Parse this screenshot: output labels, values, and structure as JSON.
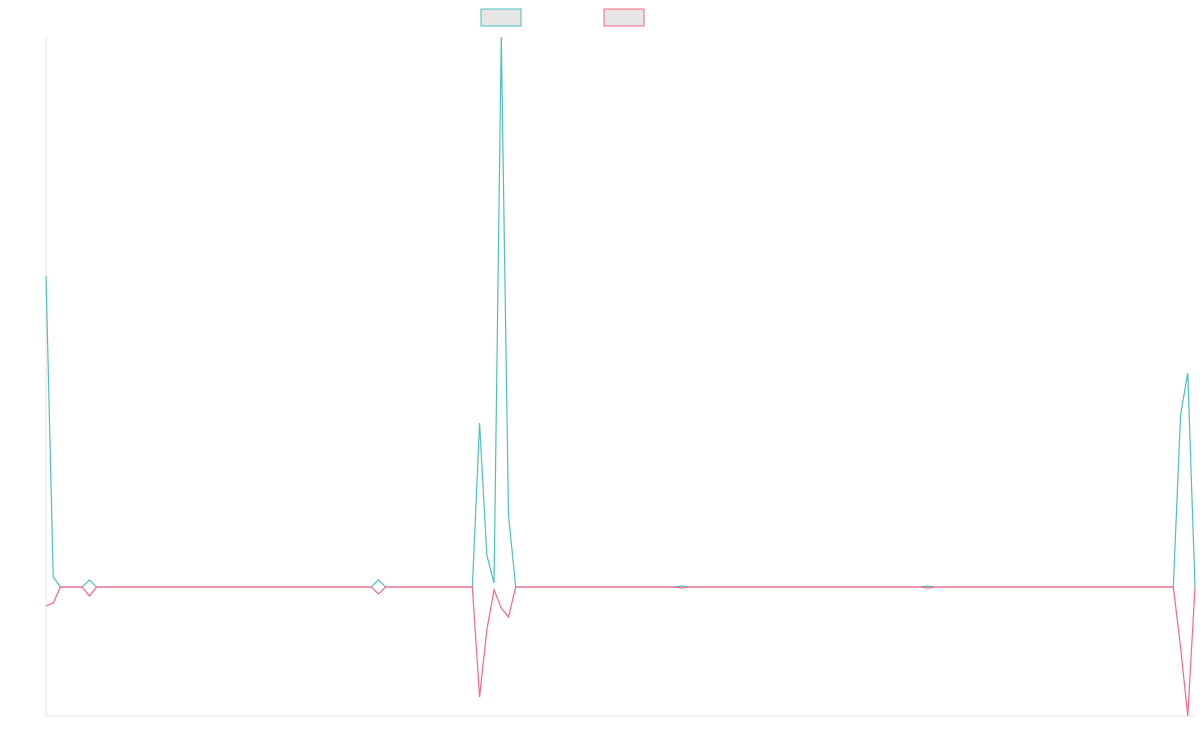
{
  "chart_data": {
    "type": "line",
    "categories": [
      null,
      null,
      null,
      null,
      null,
      null,
      null,
      null,
      null,
      null,
      null,
      null,
      null,
      null,
      null,
      null,
      null,
      null,
      null,
      null,
      null,
      null,
      null,
      null,
      null,
      null,
      null,
      null,
      null,
      null,
      null,
      null,
      null,
      null,
      null,
      null,
      null,
      null,
      null,
      null,
      null,
      null,
      null,
      null,
      null,
      null,
      null,
      null,
      null,
      null,
      null,
      null,
      null,
      null,
      null,
      null,
      null,
      null,
      null,
      null,
      null,
      null,
      null,
      null,
      null,
      null,
      null,
      null,
      null,
      null,
      null,
      null,
      null,
      null,
      null,
      null,
      null,
      null,
      null,
      null,
      null,
      null,
      null,
      null,
      null,
      null,
      null,
      null,
      null,
      null,
      null,
      null,
      null,
      null,
      null,
      null,
      null,
      null,
      null,
      null,
      null,
      null,
      null,
      null,
      null,
      null,
      null,
      null,
      null,
      null,
      null,
      null,
      null,
      null,
      null,
      null,
      null,
      null,
      null,
      null,
      null,
      null,
      null,
      null,
      null,
      null,
      null,
      null,
      null,
      null,
      null,
      null,
      null,
      null,
      null,
      null,
      null,
      null,
      null,
      null,
      null,
      null,
      null,
      null,
      null,
      null,
      null,
      null,
      null,
      null,
      null,
      null,
      null,
      null,
      null,
      null,
      null,
      null,
      null,
      null
    ],
    "series": [
      {
        "color": "#4bc0c0",
        "values": [
          311,
          10,
          0,
          0,
          0,
          0,
          7,
          0,
          0,
          0,
          0,
          0,
          0,
          0,
          0,
          0,
          0,
          0,
          0,
          0,
          0,
          0,
          0,
          0,
          0,
          0,
          0,
          0,
          0,
          0,
          0,
          0,
          0,
          0,
          0,
          0,
          0,
          0,
          0,
          0,
          0,
          0,
          0,
          0,
          0,
          0,
          7,
          0,
          0,
          0,
          0,
          0,
          0,
          0,
          0,
          0,
          0,
          0,
          0,
          0,
          164,
          32,
          4,
          550,
          72,
          0,
          0,
          0,
          0,
          0,
          0,
          0,
          0,
          0,
          0,
          0,
          0,
          0,
          0,
          0,
          0,
          0,
          0,
          0,
          0,
          0,
          0,
          0,
          1,
          0,
          0,
          0,
          0,
          0,
          0,
          0,
          0,
          0,
          0,
          0,
          0,
          0,
          0,
          0,
          0,
          0,
          0,
          0,
          0,
          0,
          0,
          0,
          0,
          0,
          0,
          0,
          0,
          0,
          0,
          0,
          0,
          0,
          1,
          0,
          0,
          0,
          0,
          0,
          0,
          0,
          0,
          0,
          0,
          0,
          0,
          0,
          0,
          0,
          0,
          0,
          0,
          0,
          0,
          0,
          0,
          0,
          0,
          0,
          0,
          0,
          0,
          0,
          0,
          0,
          0,
          0,
          0,
          172,
          214,
          0
        ]
      },
      {
        "color": "#ff6384",
        "values": [
          -19,
          -16,
          0,
          0,
          0,
          0,
          -9,
          0,
          0,
          0,
          0,
          0,
          0,
          0,
          0,
          0,
          0,
          0,
          0,
          0,
          0,
          0,
          0,
          0,
          0,
          0,
          0,
          0,
          0,
          0,
          0,
          0,
          0,
          0,
          0,
          0,
          0,
          0,
          0,
          0,
          0,
          0,
          0,
          0,
          0,
          0,
          -7,
          0,
          0,
          0,
          0,
          0,
          0,
          0,
          0,
          0,
          0,
          0,
          0,
          0,
          -110,
          -43,
          -3,
          -21,
          -30,
          0,
          0,
          0,
          0,
          0,
          0,
          0,
          0,
          0,
          0,
          0,
          0,
          0,
          0,
          0,
          0,
          0,
          0,
          0,
          0,
          0,
          0,
          0,
          -1,
          0,
          0,
          0,
          0,
          0,
          0,
          0,
          0,
          0,
          0,
          0,
          0,
          0,
          0,
          0,
          0,
          0,
          0,
          0,
          0,
          0,
          0,
          0,
          0,
          0,
          0,
          0,
          0,
          0,
          0,
          0,
          0,
          0,
          -1,
          0,
          0,
          0,
          0,
          0,
          0,
          0,
          0,
          0,
          0,
          0,
          0,
          0,
          0,
          0,
          0,
          0,
          0,
          0,
          0,
          0,
          0,
          0,
          0,
          0,
          0,
          0,
          0,
          0,
          0,
          0,
          0,
          0,
          0,
          -60,
          -129,
          0
        ]
      }
    ],
    "ylim": [
      -129,
      550
    ]
  }
}
